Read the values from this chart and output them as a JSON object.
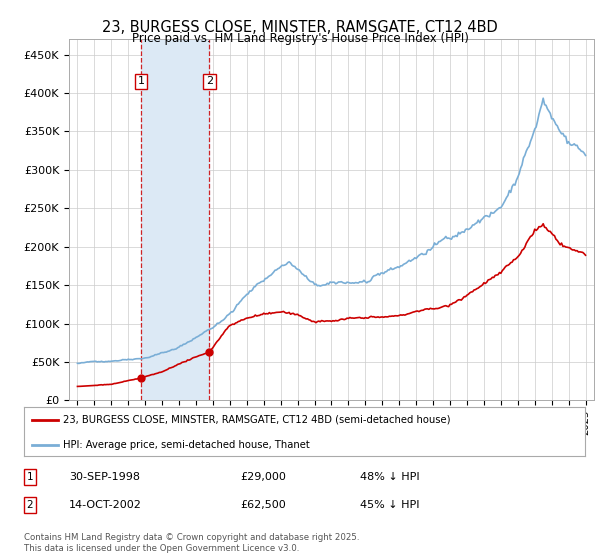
{
  "title": "23, BURGESS CLOSE, MINSTER, RAMSGATE, CT12 4BD",
  "subtitle": "Price paid vs. HM Land Registry's House Price Index (HPI)",
  "sale1_date": 1998.75,
  "sale1_price": 29000,
  "sale1_text": "30-SEP-1998",
  "sale1_amount": "£29,000",
  "sale1_pct": "48% ↓ HPI",
  "sale2_date": 2002.79,
  "sale2_price": 62500,
  "sale2_text": "14-OCT-2002",
  "sale2_amount": "£62,500",
  "sale2_pct": "45% ↓ HPI",
  "ylim": [
    0,
    470000
  ],
  "xlim": [
    1994.5,
    2025.5
  ],
  "red_color": "#cc0000",
  "blue_color": "#7aaed6",
  "shade_color": "#dce9f5",
  "legend_label_red": "23, BURGESS CLOSE, MINSTER, RAMSGATE, CT12 4BD (semi-detached house)",
  "legend_label_blue": "HPI: Average price, semi-detached house, Thanet",
  "footer": "Contains HM Land Registry data © Crown copyright and database right 2025.\nThis data is licensed under the Open Government Licence v3.0.",
  "background_color": "#ffffff",
  "yticks": [
    0,
    50000,
    100000,
    150000,
    200000,
    250000,
    300000,
    350000,
    400000,
    450000
  ],
  "ytick_labels": [
    "£0",
    "£50K",
    "£100K",
    "£150K",
    "£200K",
    "£250K",
    "£300K",
    "£350K",
    "£400K",
    "£450K"
  ]
}
